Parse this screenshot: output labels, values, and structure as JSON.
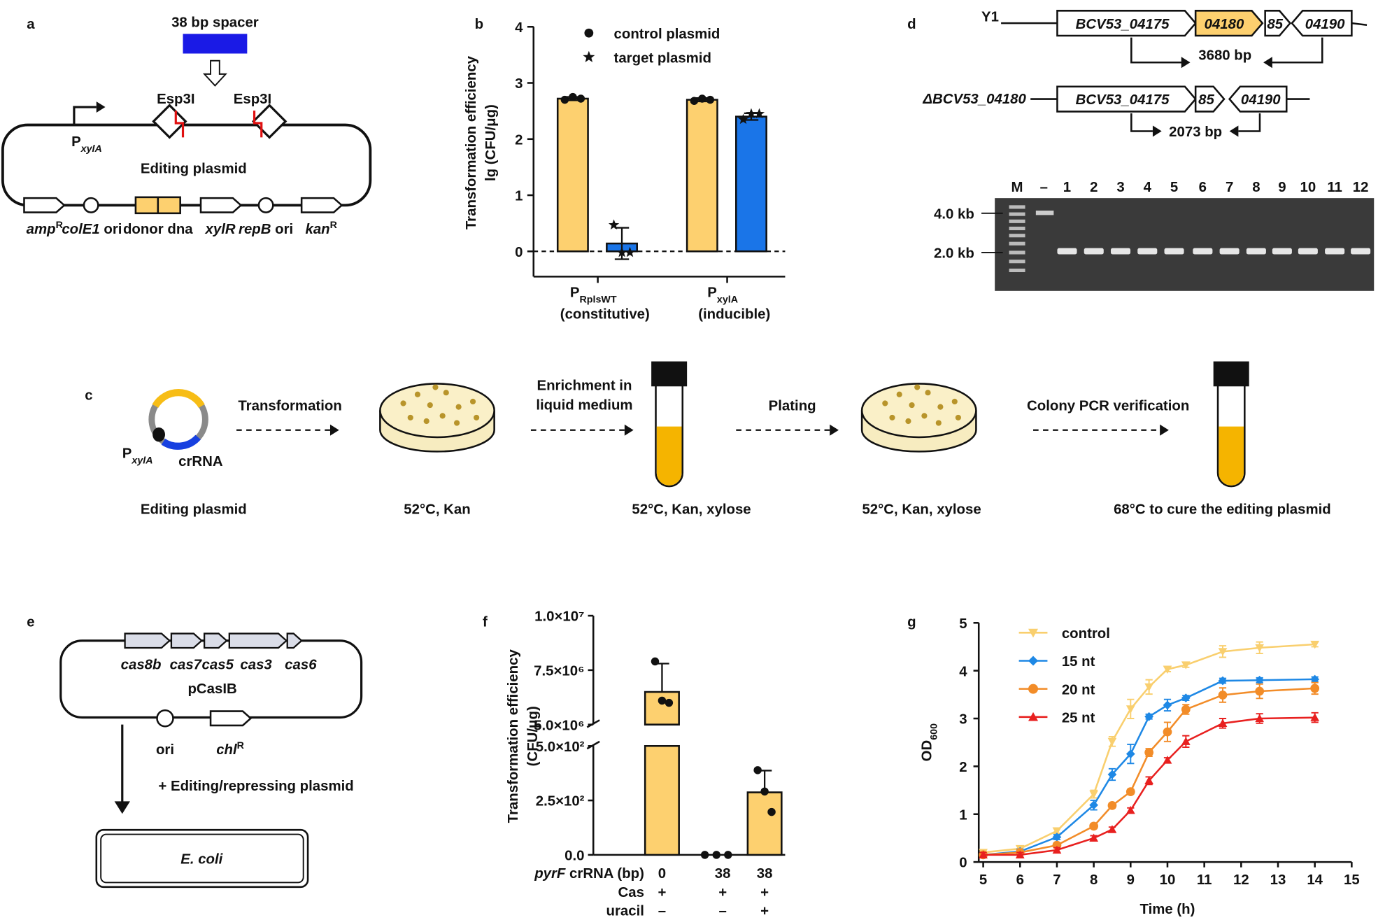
{
  "panel_labels": [
    "a",
    "b",
    "c",
    "d",
    "e",
    "f",
    "g"
  ],
  "diagram_a": {
    "spacer": "38 bp spacer",
    "site_labels": [
      "Esp3I",
      "Esp3I"
    ],
    "promoter": {
      "text": "P",
      "sub": "xylA"
    },
    "plasmid_name": "Editing plasmid",
    "elements": [
      {
        "italic": "amp",
        "sup": "R"
      },
      {
        "italic": "colE1",
        "text": " ori"
      },
      {
        "text": "donor dna"
      },
      {
        "italic": "xylR"
      },
      {
        "italic": "repB",
        "text": " ori"
      },
      {
        "italic": "kan",
        "sup": "R"
      }
    ]
  },
  "diagram_c": {
    "plasmid_labels": [
      {
        "text": "P",
        "sub": "xylA"
      },
      {
        "text": "crRNA"
      }
    ],
    "start": "Editing plasmid",
    "steps": [
      {
        "action": [
          "Transformation"
        ],
        "result": "52°C, Kan"
      },
      {
        "action": [
          "Enrichment in",
          "liquid medium"
        ],
        "result": "52°C, Kan, xylose"
      },
      {
        "action": [
          "Plating"
        ],
        "result": "52°C, Kan, xylose"
      },
      {
        "action": [
          "Colony PCR verification"
        ],
        "result": "68°C to cure the editing plasmid"
      }
    ]
  },
  "diagram_d": {
    "strain": "Y1",
    "wild_genes": [
      "BCV53_04175",
      "04180",
      "85",
      "04190"
    ],
    "wild_product": "3680 bp",
    "mutant": "ΔBCV53_04180",
    "mutant_genes": [
      "BCV53_04175",
      "85",
      "04190"
    ],
    "mutant_product": "2073 bp",
    "lanes": [
      "M",
      "–",
      "1",
      "2",
      "3",
      "4",
      "5",
      "6",
      "7",
      "8",
      "9",
      "10",
      "11",
      "12"
    ],
    "size_markers": [
      "4.0 kb",
      "2.0 kb"
    ]
  },
  "diagram_e": {
    "genes": [
      "cas8b",
      "cas7",
      "cas5",
      "cas3",
      "cas6"
    ],
    "plasmid_name": "pCasIB",
    "elements": [
      {
        "text": "ori"
      },
      {
        "italic": "chl",
        "sup": "R"
      }
    ],
    "step": "+ Editing/repressing plasmid",
    "host": {
      "italic": "E. coli"
    }
  },
  "chart_data": [
    {
      "type": "bar",
      "ylabel": [
        "Transformation efficiency",
        "lg (CFU/μg)"
      ],
      "categories": [
        {
          "text": "P",
          "sub": "RplsWT"
        },
        {
          "text": "P",
          "sub": "xylA"
        }
      ],
      "category_notes": [
        "(constitutive)",
        "(inducible)"
      ],
      "series": [
        {
          "name": "control plasmid",
          "color": "#fdd06f",
          "marker": "circle",
          "values": [
            2.72,
            2.7
          ],
          "errors": [
            0.03,
            0.03
          ],
          "points": [
            [
              2.7,
              2.75,
              2.72
            ],
            [
              2.68,
              2.72,
              2.7
            ]
          ]
        },
        {
          "name": "target plasmid",
          "color": "#1a75e8",
          "marker": "star",
          "values": [
            0.14,
            2.4
          ],
          "errors": [
            0.28,
            0.06
          ],
          "points": [
            [
              0.47,
              -0.02,
              -0.02
            ],
            [
              2.35,
              2.45,
              2.45
            ]
          ]
        }
      ],
      "ylim": [
        -0.45,
        4
      ],
      "yticks": [
        0,
        1,
        2,
        3,
        4
      ],
      "zero_line": true,
      "legend": "upper right"
    },
    {
      "type": "bar",
      "ylabel": [
        "Transformation efficiency",
        "(CFU/μg)"
      ],
      "color": "#fdd06f",
      "values": [
        6500000,
        0,
        287
      ],
      "errors": [
        1300000,
        0,
        100
      ],
      "points": [
        [
          7900000,
          6100000,
          6000000
        ],
        [
          0,
          0,
          0
        ],
        [
          389,
          291,
          197
        ]
      ],
      "y_segments": [
        {
          "ylim": [
            0,
            500
          ],
          "yticks": [
            {
              "value": 0,
              "label": "0.0"
            },
            {
              "value": 250,
              "label": "2.5×10²"
            },
            {
              "value": 500,
              "label": "5.0×10²"
            }
          ]
        },
        {
          "ylim": [
            5000000,
            10000000
          ],
          "yticks": [
            {
              "value": 5000000,
              "label": "5.0×10⁶"
            },
            {
              "value": 7500000,
              "label": "7.5×10⁶"
            },
            {
              "value": 10000000,
              "label": "1.0×10⁷"
            }
          ]
        }
      ],
      "conditions": [
        {
          "label": {
            "italic": "pyrF",
            "text": " crRNA (bp)"
          },
          "values": [
            "0",
            "38",
            "38"
          ]
        },
        {
          "label": {
            "text": "Cas"
          },
          "values": [
            "+",
            "+",
            "+"
          ]
        },
        {
          "label": {
            "text": "uracil"
          },
          "values": [
            "–",
            "–",
            "+"
          ]
        }
      ]
    },
    {
      "type": "line",
      "xlabel": "Time (h)",
      "ylabel": {
        "text": "OD",
        "sub": "600"
      },
      "x": [
        5,
        6,
        7,
        8,
        8.5,
        9,
        9.5,
        10,
        10.5,
        11.5,
        12.5,
        14
      ],
      "series": [
        {
          "name": "control",
          "color": "#f9cf6e",
          "marker": "triangle-down",
          "values": [
            0.2,
            0.28,
            0.65,
            1.42,
            2.52,
            3.2,
            3.66,
            4.03,
            4.12,
            4.4,
            4.48,
            4.55
          ],
          "errors": [
            0.05,
            0.05,
            0.05,
            0.08,
            0.1,
            0.2,
            0.15,
            0.05,
            0.05,
            0.12,
            0.12,
            0.05
          ]
        },
        {
          "name": "15 nt",
          "color": "#1e88e5",
          "marker": "diamond",
          "values": [
            0.15,
            0.22,
            0.52,
            1.19,
            1.83,
            2.26,
            3.04,
            3.28,
            3.43,
            3.79,
            3.8,
            3.82
          ],
          "errors": [
            0.05,
            0.05,
            0.05,
            0.1,
            0.12,
            0.2,
            0.05,
            0.12,
            0.05,
            0.05,
            0.05,
            0.05
          ]
        },
        {
          "name": "20 nt",
          "color": "#f28c28",
          "marker": "circle",
          "values": [
            0.15,
            0.2,
            0.35,
            0.75,
            1.18,
            1.47,
            2.29,
            2.72,
            3.19,
            3.49,
            3.57,
            3.63
          ],
          "errors": [
            0.05,
            0.05,
            0.05,
            0.05,
            0.05,
            0.05,
            0.08,
            0.2,
            0.1,
            0.15,
            0.15,
            0.12
          ]
        },
        {
          "name": "25 nt",
          "color": "#e8201f",
          "marker": "triangle-up",
          "values": [
            0.15,
            0.15,
            0.25,
            0.5,
            0.68,
            1.08,
            1.7,
            2.13,
            2.52,
            2.9,
            3.0,
            3.02
          ],
          "errors": [
            0.05,
            0.05,
            0.05,
            0.05,
            0.05,
            0.05,
            0.08,
            0.05,
            0.12,
            0.1,
            0.1,
            0.1
          ]
        }
      ],
      "xlim": [
        5,
        15
      ],
      "xticks": [
        5,
        6,
        7,
        8,
        9,
        10,
        11,
        12,
        13,
        14,
        15
      ],
      "ylim": [
        0,
        5
      ],
      "yticks": [
        0,
        1,
        2,
        3,
        4,
        5
      ],
      "legend": "upper left"
    }
  ]
}
